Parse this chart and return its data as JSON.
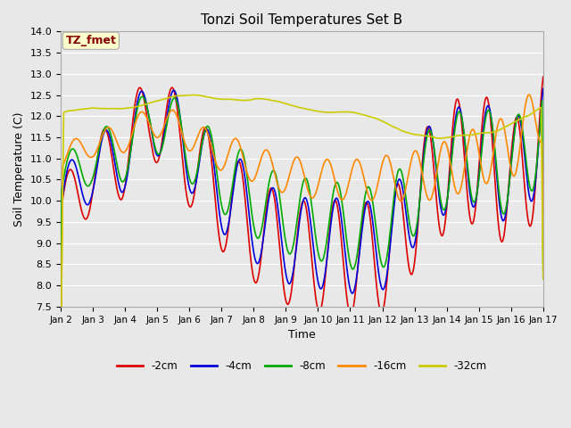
{
  "title": "Tonzi Soil Temperatures Set B",
  "xlabel": "Time",
  "ylabel": "Soil Temperature (C)",
  "ylim": [
    7.5,
    14.0
  ],
  "yticks": [
    7.5,
    8.0,
    8.5,
    9.0,
    9.5,
    10.0,
    10.5,
    11.0,
    11.5,
    12.0,
    12.5,
    13.0,
    13.5,
    14.0
  ],
  "xtick_labels": [
    "Jan 2",
    "Jan 3",
    "Jan 4",
    "Jan 5",
    "Jan 6",
    "Jan 7",
    "Jan 8",
    "Jan 9",
    "Jan 10",
    "Jan 11",
    "Jan 12",
    "Jan 13",
    "Jan 14",
    "Jan 15",
    "Jan 16",
    "Jan 17"
  ],
  "annotation_text": "TZ_fmet",
  "annotation_box_facecolor": "#ffffcc",
  "annotation_box_edgecolor": "#aaaaaa",
  "annotation_text_color": "#880000",
  "series_colors": {
    "-2cm": "#dd0000",
    "-4cm": "#0000dd",
    "-8cm": "#00aa00",
    "-16cm": "#ff8800",
    "-32cm": "#cccc00"
  },
  "linewidth": 1.2,
  "background_color": "#e8e8e8",
  "grid_color": "#ffffff",
  "figsize": [
    6.4,
    4.8
  ],
  "dpi": 100
}
